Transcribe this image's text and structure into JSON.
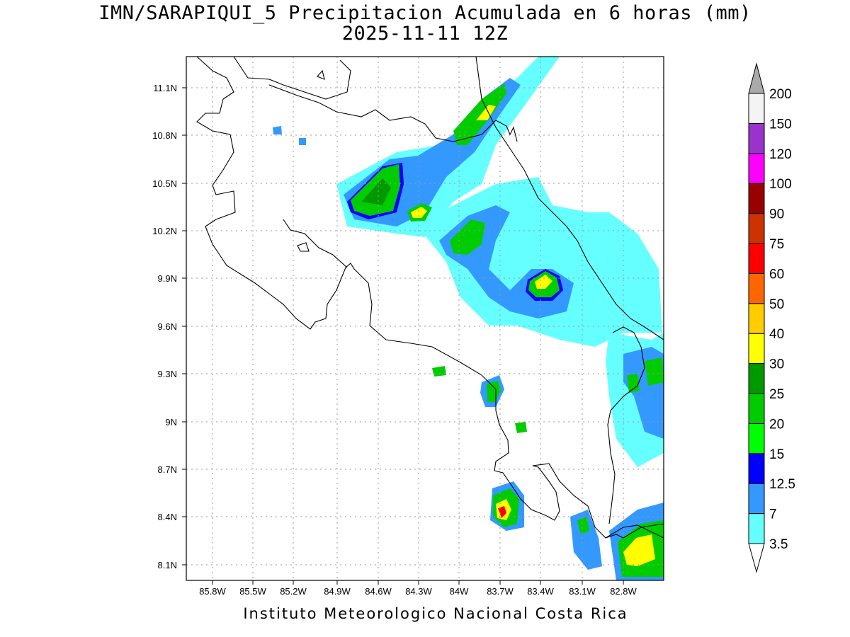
{
  "title": {
    "line1": "IMN/SARAPIQUI_5 Precipitacion Acumulada en 6 horas (mm)",
    "line2": "2025-11-11 12Z"
  },
  "footer": "Instituto Meteorologico Nacional Costa Rica",
  "axes": {
    "lat_labels": [
      "11.1N",
      "10.8N",
      "10.5N",
      "10.2N",
      "9.9N",
      "9.6N",
      "9.3N",
      "9N",
      "8.7N",
      "8.4N",
      "8.1N"
    ],
    "lon_labels": [
      "85.8W",
      "85.5W",
      "85.2W",
      "84.9W",
      "84.6W",
      "84.3W",
      "84W",
      "83.7W",
      "83.4W",
      "83.1W",
      "82.8W"
    ],
    "lat_range": [
      8.0,
      11.3
    ],
    "lon_range": [
      -86.0,
      -83.0
    ]
  },
  "colorbar": {
    "labels": [
      "3.5",
      "7",
      "12.5",
      "15",
      "20",
      "25",
      "30",
      "40",
      "50",
      "60",
      "75",
      "90",
      "100",
      "120",
      "150",
      "200"
    ],
    "colors": [
      "#66ffff",
      "#3399ff",
      "#0000ff",
      "#00ff00",
      "#00cc00",
      "#009900",
      "#ffff00",
      "#ffcc00",
      "#ff6600",
      "#ff0000",
      "#cc3300",
      "#990000",
      "#ff00ff",
      "#9933cc",
      "#f4f4f4",
      "#aaaaaa"
    ]
  }
}
